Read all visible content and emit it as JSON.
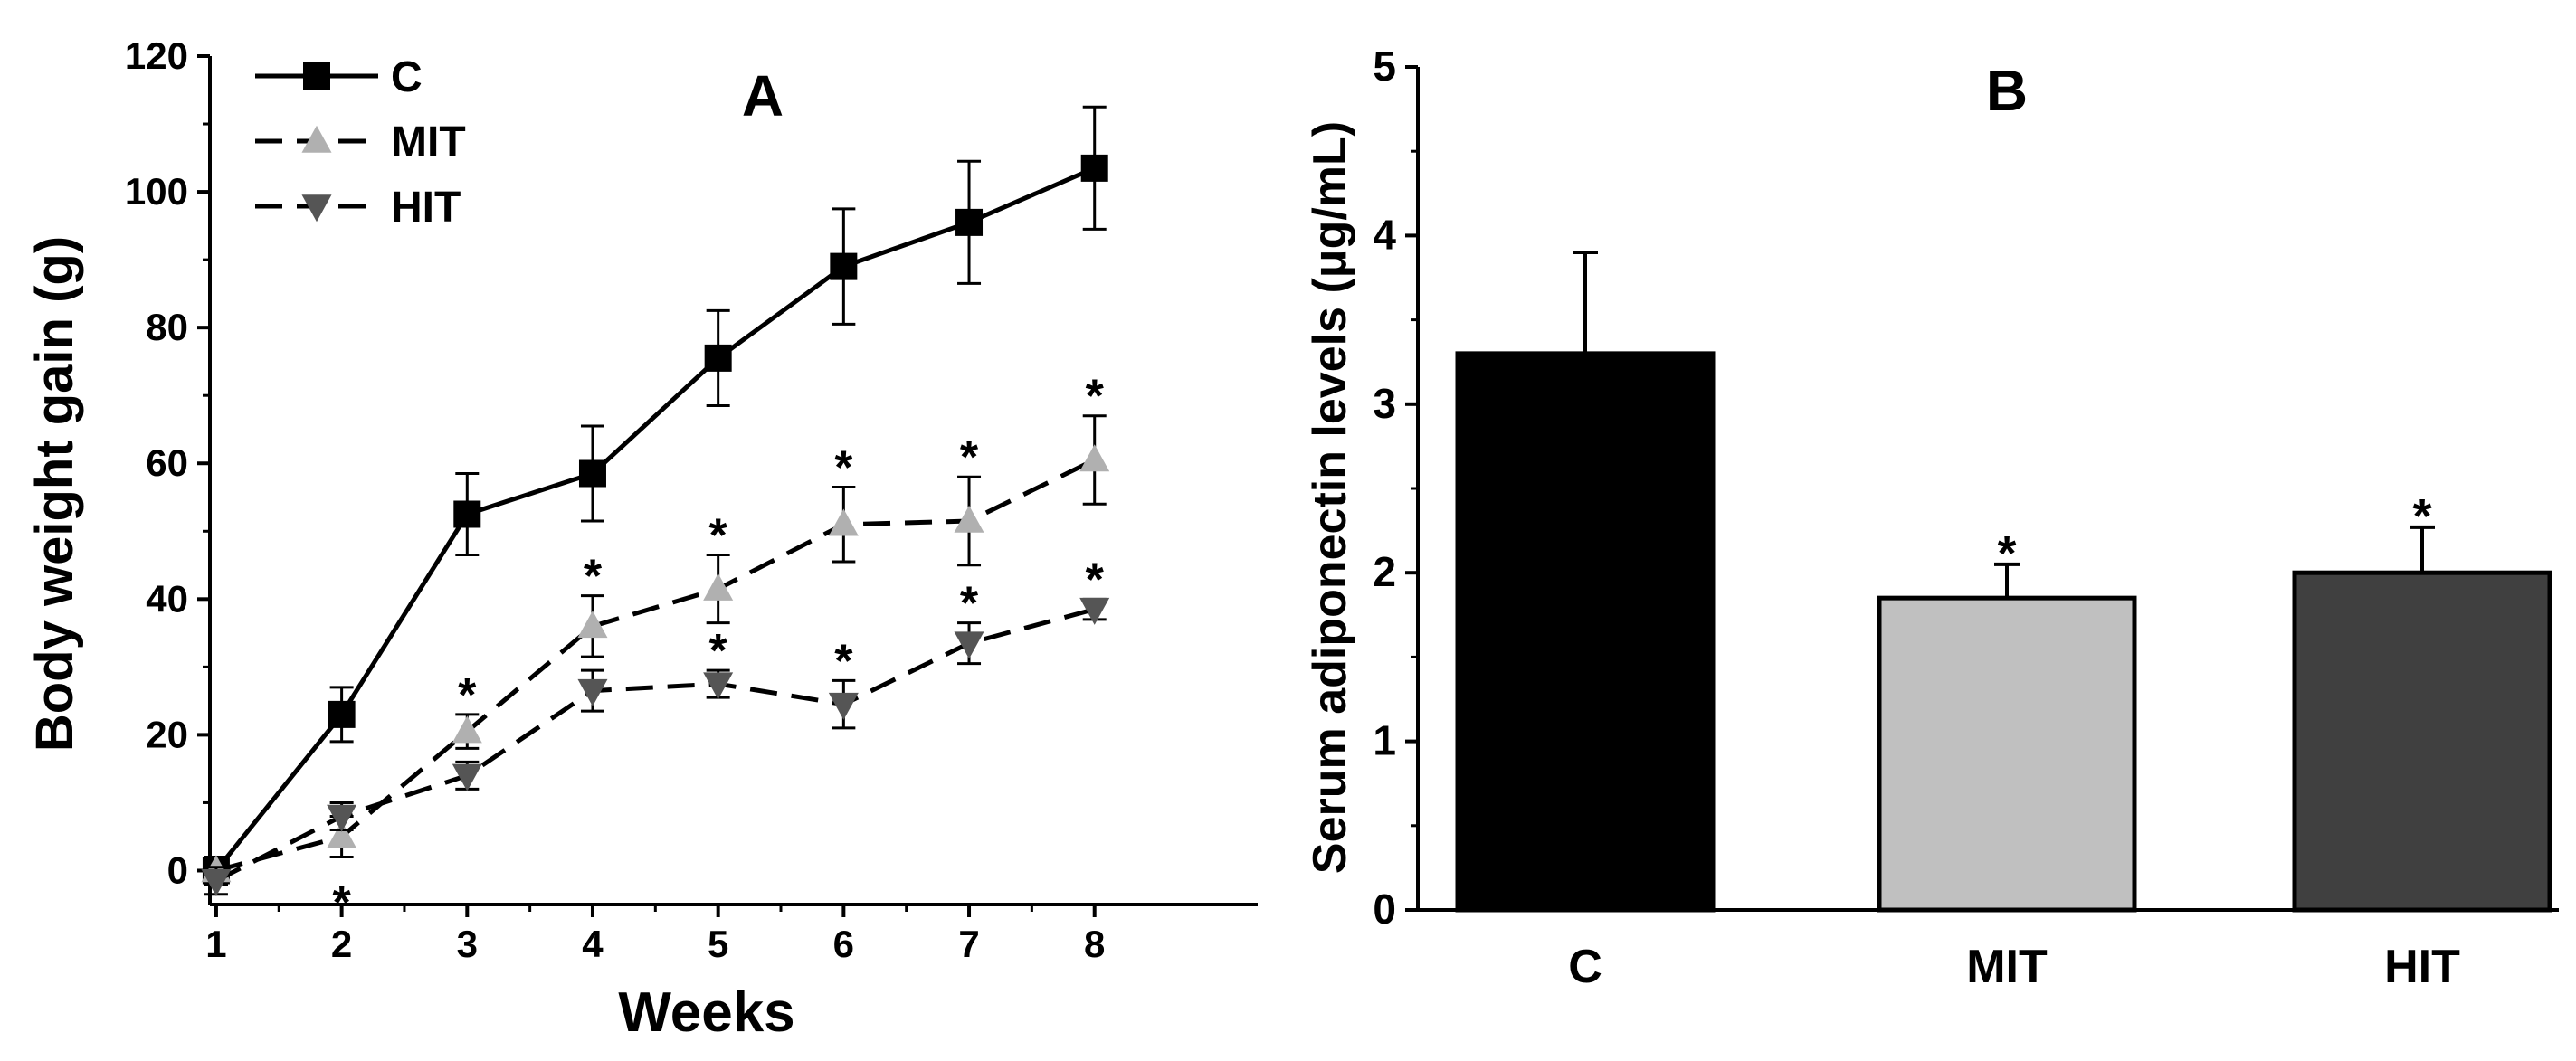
{
  "chart_data": [
    {
      "type": "line",
      "panel_label": "A",
      "title": "",
      "xlabel": "Weeks",
      "ylabel": "Body weight gain (g)",
      "x": [
        1,
        2,
        3,
        4,
        5,
        6,
        7,
        8
      ],
      "x_tick_labels": [
        "1",
        "2",
        "3",
        "4",
        "5",
        "6",
        "7",
        "8"
      ],
      "xlim": [
        0.95,
        9.3
      ],
      "ylim": [
        -5,
        120
      ],
      "y_ticks": [
        0,
        20,
        40,
        60,
        80,
        100,
        120
      ],
      "y_tick_labels": [
        "0",
        "20",
        "40",
        "60",
        "80",
        "100",
        "120"
      ],
      "legend_position": "top-left",
      "significance_marker": "*",
      "series": [
        {
          "name": "C",
          "line_style": "solid",
          "marker": "square",
          "color": "#000000",
          "values": [
            0,
            23,
            52.5,
            58.5,
            75.5,
            89,
            95.5,
            103.5
          ],
          "errors": [
            2,
            4,
            6,
            7,
            7,
            8.5,
            9,
            9
          ],
          "significant": [
            false,
            false,
            false,
            false,
            false,
            false,
            false,
            false
          ]
        },
        {
          "name": "MIT",
          "line_style": "dashed",
          "marker": "triangle-up",
          "color": "#b0b0b0",
          "values": [
            0,
            5,
            20.5,
            36,
            41.5,
            51,
            51.5,
            60.5
          ],
          "errors": [
            2,
            3,
            2.5,
            4.5,
            5,
            5.5,
            6.5,
            6.5
          ],
          "significant": [
            false,
            true,
            true,
            true,
            true,
            true,
            true,
            true
          ]
        },
        {
          "name": "HIT",
          "line_style": "dashed",
          "marker": "triangle-down",
          "color": "#555555",
          "values": [
            -1.5,
            8,
            14,
            26.5,
            27.5,
            24.5,
            33.5,
            38.5
          ],
          "errors": [
            2,
            2,
            2,
            3,
            2,
            3.5,
            3,
            1.5
          ],
          "significant": [
            false,
            false,
            false,
            false,
            true,
            true,
            true,
            true
          ]
        }
      ]
    },
    {
      "type": "bar",
      "panel_label": "B",
      "title": "",
      "xlabel": "",
      "ylabel": "Serum adiponectin levels (μg/mL)",
      "categories": [
        "C",
        "MIT",
        "HIT"
      ],
      "values": [
        3.3,
        1.85,
        2.0
      ],
      "errors": [
        0.6,
        0.2,
        0.27
      ],
      "colors": [
        "#000000",
        "#c0c0c0",
        "#404040"
      ],
      "significant": [
        false,
        true,
        true
      ],
      "significance_marker": "*",
      "ylim": [
        0,
        5
      ],
      "y_ticks": [
        0,
        1,
        2,
        3,
        4,
        5
      ],
      "y_tick_labels": [
        "0",
        "1",
        "2",
        "3",
        "4",
        "5"
      ]
    }
  ]
}
